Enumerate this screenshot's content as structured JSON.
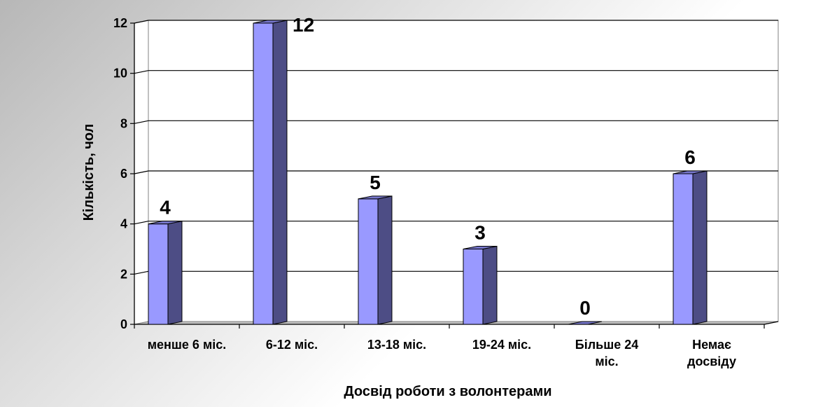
{
  "chart_data": {
    "type": "bar",
    "ylabel": "Кількість, чол",
    "xlabel": "Досвід роботи з волонтерами",
    "categories": [
      [
        "менше 6 міс."
      ],
      [
        "6-12 міс."
      ],
      [
        "13-18 міс."
      ],
      [
        "19-24 міс."
      ],
      [
        "Більше 24",
        "міс."
      ],
      [
        "Немає",
        "досвіду"
      ]
    ],
    "values": [
      4,
      12,
      5,
      3,
      0,
      6
    ],
    "data_labels": [
      "4",
      "12",
      "5",
      "3",
      "0",
      "6"
    ],
    "yticks": [
      "0",
      "2",
      "4",
      "6",
      "8",
      "10",
      "12"
    ],
    "ylim": [
      0,
      12
    ],
    "grid": true,
    "style": "3d-column",
    "colors": {
      "bar_front": "#9999ff",
      "bar_side": "#4d4d85",
      "bar_top": "#7777cc",
      "grid": "#000000",
      "wall": "#ffffff",
      "floor": "#c0c0c0"
    }
  }
}
